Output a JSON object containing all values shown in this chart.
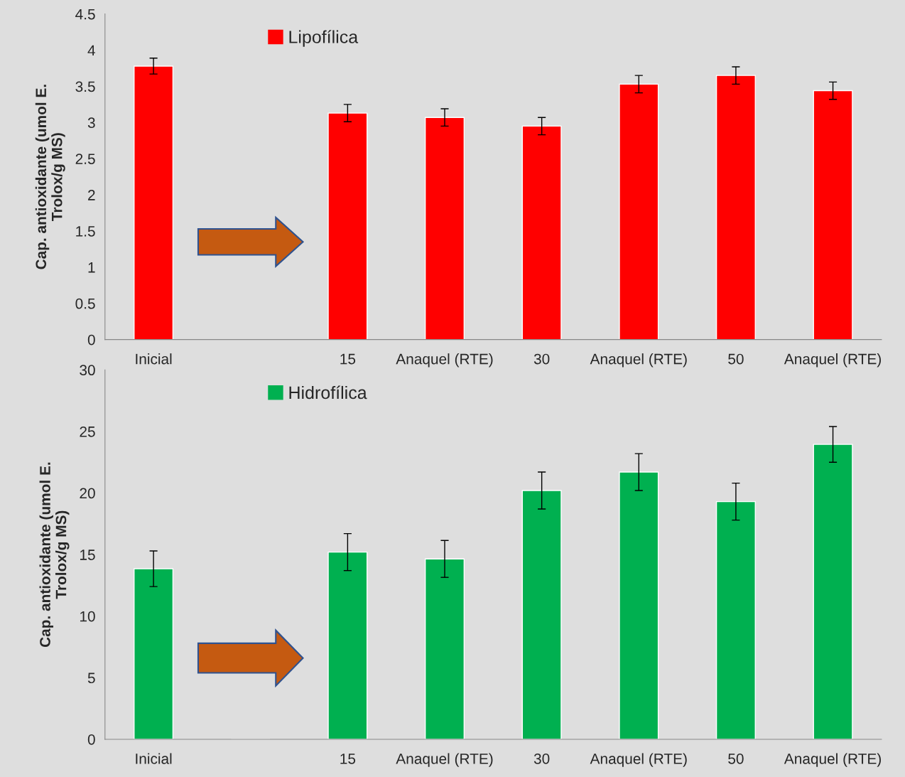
{
  "chart_data": [
    {
      "type": "bar",
      "ylabel": "Cap. antioxidante (umol E.\nTrolox/g MS)",
      "categories": [
        "Inicial",
        null,
        "15",
        "Anaquel (RTE)",
        "30",
        "Anaquel (RTE)",
        "50",
        "Anaquel (RTE)"
      ],
      "series": [
        {
          "name": "Lipofílica",
          "color": "#ff0000",
          "values": [
            3.78,
            null,
            3.13,
            3.07,
            2.95,
            3.53,
            3.65,
            3.44
          ],
          "errors": [
            0.11,
            null,
            0.12,
            0.12,
            0.12,
            0.12,
            0.12,
            0.12
          ]
        }
      ],
      "ylim": [
        0,
        4.5
      ],
      "yticks": [
        0,
        0.5,
        1,
        1.5,
        2,
        2.5,
        3,
        3.5,
        4,
        4.5
      ],
      "grid": false,
      "legend": "top left"
    },
    {
      "type": "bar",
      "ylabel": "Cap. antioxidante (umol E.\nTrolox/g MS)",
      "categories": [
        "Inicial",
        null,
        "15",
        "Anaquel (RTE)",
        "30",
        "Anaquel (RTE)",
        "50",
        "Anaquel (RTE)"
      ],
      "series": [
        {
          "name": "Hidrofílica",
          "color": "#00b050",
          "values": [
            13.85,
            null,
            15.2,
            14.65,
            20.2,
            21.7,
            19.3,
            23.95
          ],
          "errors": [
            1.45,
            null,
            1.5,
            1.5,
            1.5,
            1.5,
            1.5,
            1.45
          ]
        }
      ],
      "ylim": [
        0,
        30
      ],
      "yticks": [
        0,
        5,
        10,
        15,
        20,
        25,
        30
      ],
      "grid": false,
      "legend": "top left"
    }
  ]
}
